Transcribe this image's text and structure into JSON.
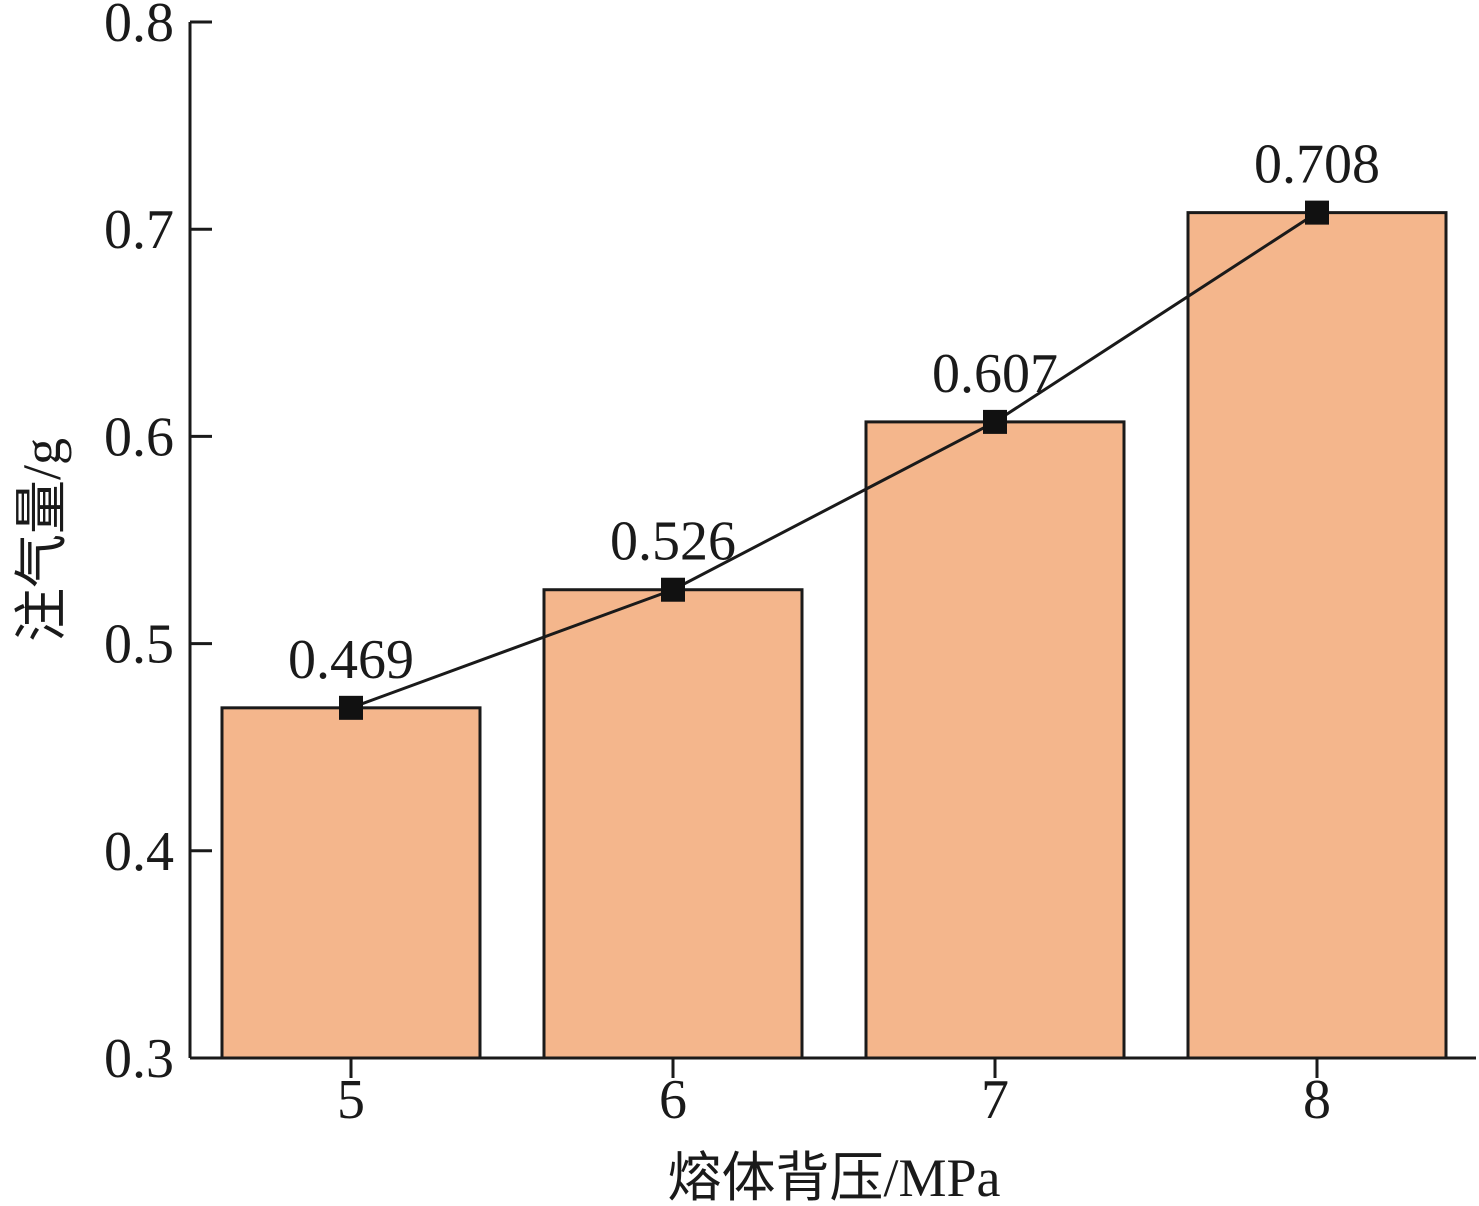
{
  "chart_data": {
    "type": "bar",
    "categories": [
      "5",
      "6",
      "7",
      "8"
    ],
    "values": [
      0.469,
      0.526,
      0.607,
      0.708
    ],
    "data_labels": [
      "0.469",
      "0.526",
      "0.607",
      "0.708"
    ],
    "line_overlay": true,
    "marker": "square",
    "xlabel": "熔体背压/MPa",
    "ylabel": "注气量/g",
    "ylim": [
      0.3,
      0.8
    ],
    "yticks": [
      "0.3",
      "0.4",
      "0.5",
      "0.6",
      "0.7",
      "0.8"
    ],
    "grid": false,
    "colors": {
      "bar_fill": "#f4b68c",
      "bar_stroke": "#1a1a1a",
      "line": "#1a1a1a",
      "marker": "#111111"
    }
  }
}
